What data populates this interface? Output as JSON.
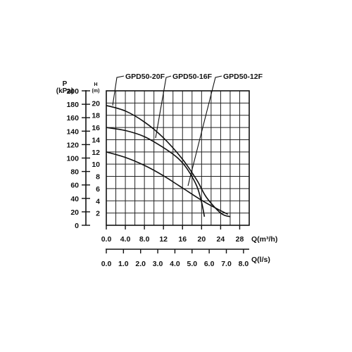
{
  "chart_data": {
    "type": "line",
    "pressure_axis": {
      "label": "P",
      "unit": "(kPa)",
      "ticks": [
        0,
        20,
        40,
        60,
        80,
        100,
        120,
        140,
        160,
        180,
        200
      ],
      "range": [
        0,
        200
      ]
    },
    "head_axis": {
      "label": "H",
      "unit": "(m)",
      "ticks": [
        2,
        4,
        6,
        8,
        10,
        12,
        14,
        16,
        18,
        20
      ],
      "range": [
        0,
        22
      ]
    },
    "flow_m3h_axis": {
      "label": "Q(m³/h)",
      "tick_labels": [
        "0.0",
        "4.0",
        "8.0",
        "12",
        "16",
        "20",
        "24",
        "28"
      ],
      "ticks": [
        0,
        4,
        8,
        12,
        16,
        20,
        24,
        28
      ],
      "range": [
        0,
        30
      ]
    },
    "flow_ls_axis": {
      "label": "Q(l/s)",
      "tick_labels": [
        "0.0",
        "1.0",
        "2.0",
        "3.0",
        "4.0",
        "5.0",
        "6.0",
        "7.0",
        "8.0"
      ],
      "ticks": [
        0,
        1,
        2,
        3,
        4,
        5,
        6,
        7,
        8
      ]
    },
    "grid": true,
    "series": [
      {
        "name": "GPD50-20F",
        "points": [
          [
            0,
            19.6
          ],
          [
            4,
            18.7
          ],
          [
            8,
            16.9
          ],
          [
            12,
            14.3
          ],
          [
            16,
            10.8
          ],
          [
            19,
            7.4
          ],
          [
            21,
            4.6
          ],
          [
            24,
            2.0
          ],
          [
            26,
            1.4
          ]
        ]
      },
      {
        "name": "GPD50-16F",
        "points": [
          [
            0,
            16.0
          ],
          [
            4,
            15.5
          ],
          [
            8,
            14.5
          ],
          [
            12,
            12.7
          ],
          [
            15,
            11.0
          ],
          [
            17,
            9.2
          ],
          [
            19,
            6.4
          ],
          [
            20,
            3.8
          ],
          [
            20.6,
            1.4
          ]
        ]
      },
      {
        "name": "GPD50-12F",
        "points": [
          [
            0,
            12.0
          ],
          [
            4,
            11.1
          ],
          [
            8,
            9.8
          ],
          [
            12,
            8.1
          ],
          [
            16,
            6.1
          ],
          [
            20,
            4.1
          ],
          [
            23,
            2.8
          ],
          [
            25.5,
            1.8
          ]
        ]
      }
    ]
  }
}
